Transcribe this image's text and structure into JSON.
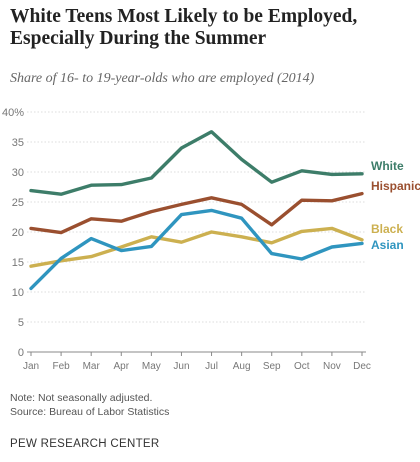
{
  "header": {
    "title": "White Teens Most Likely to be Employed, Especially During the Summer",
    "subtitle": "Share of 16- to 19-year-olds who are employed (2014)"
  },
  "footer": {
    "note": "Note: Not seasonally adjusted.",
    "source": "Source: Bureau of Labor Statistics",
    "org": "PEW RESEARCH CENTER"
  },
  "chart_data": {
    "type": "line",
    "title": "White Teens Most Likely to be Employed, Especially During the Summer",
    "subtitle": "Share of 16- to 19-year-olds who are employed (2014)",
    "categories": [
      "Jan",
      "Feb",
      "Mar",
      "Apr",
      "May",
      "Jun",
      "Jul",
      "Aug",
      "Sep",
      "Oct",
      "Nov",
      "Dec"
    ],
    "y_ticks": [
      0,
      5,
      10,
      15,
      20,
      25,
      30,
      35,
      40
    ],
    "y_tick_labels": [
      "0",
      "5",
      "10",
      "15",
      "20",
      "25",
      "30",
      "35",
      "40%"
    ],
    "ylim": [
      0,
      40
    ],
    "grid": true,
    "legend": "inline-right",
    "series": [
      {
        "name": "White",
        "color": "#3d7d69",
        "values": [
          26.9,
          26.3,
          27.8,
          27.9,
          29.0,
          34.0,
          36.7,
          32.1,
          28.3,
          30.2,
          29.6,
          29.7
        ]
      },
      {
        "name": "Hispanic",
        "color": "#9a4f2f",
        "values": [
          20.6,
          19.9,
          22.2,
          21.8,
          23.4,
          24.6,
          25.7,
          24.6,
          21.2,
          25.3,
          25.2,
          26.4
        ]
      },
      {
        "name": "Black",
        "color": "#ccb050",
        "values": [
          14.3,
          15.2,
          15.9,
          17.5,
          19.2,
          18.3,
          20.0,
          19.2,
          18.2,
          20.1,
          20.6,
          18.7
        ]
      },
      {
        "name": "Asian",
        "color": "#2f95bf",
        "values": [
          10.6,
          15.6,
          18.9,
          16.9,
          17.6,
          22.9,
          23.6,
          22.3,
          16.4,
          15.5,
          17.5,
          18.1
        ]
      }
    ]
  }
}
